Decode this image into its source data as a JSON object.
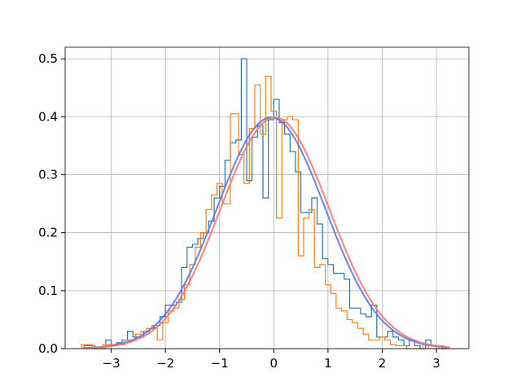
{
  "chart_data": {
    "type": "line",
    "title": "",
    "xlabel": "",
    "ylabel": "",
    "xlim": [
      -3.85,
      3.6
    ],
    "ylim": [
      0,
      0.52
    ],
    "grid": true,
    "x_ticks": [
      -3,
      -2,
      -1,
      0,
      1,
      2,
      3
    ],
    "x_tick_labels": [
      "−3",
      "−2",
      "−1",
      "0",
      "1",
      "2",
      "3"
    ],
    "y_ticks": [
      0.0,
      0.1,
      0.2,
      0.3,
      0.4,
      0.5
    ],
    "y_tick_labels": [
      "0.0",
      "0.1",
      "0.2",
      "0.3",
      "0.4",
      "0.5"
    ],
    "histograms": [
      {
        "color": "#1f77b4",
        "edges": [
          -3.5,
          -3.4,
          -3.3,
          -3.2,
          -3.1,
          -3.0,
          -2.9,
          -2.8,
          -2.7,
          -2.6,
          -2.5,
          -2.4,
          -2.3,
          -2.2,
          -2.1,
          -2.0,
          -1.9,
          -1.8,
          -1.7,
          -1.6,
          -1.5,
          -1.4,
          -1.3,
          -1.2,
          -1.1,
          -1.0,
          -0.9,
          -0.8,
          -0.7,
          -0.6,
          -0.5,
          -0.4,
          -0.3,
          -0.2,
          -0.1,
          0.0,
          0.1,
          0.2,
          0.3,
          0.4,
          0.5,
          0.6,
          0.7,
          0.8,
          0.9,
          1.0,
          1.1,
          1.2,
          1.3,
          1.4,
          1.5,
          1.6,
          1.7,
          1.8,
          1.9,
          2.0,
          2.1,
          2.2,
          2.3,
          2.4,
          2.5,
          2.6,
          2.7,
          2.8,
          2.9,
          3.0,
          3.1,
          3.2
        ],
        "heights": [
          0.005,
          0.005,
          0.0,
          0.0,
          0.015,
          0.005,
          0.01,
          0.015,
          0.03,
          0.02,
          0.02,
          0.03,
          0.035,
          0.04,
          0.055,
          0.075,
          0.075,
          0.08,
          0.14,
          0.175,
          0.18,
          0.19,
          0.2,
          0.22,
          0.26,
          0.28,
          0.325,
          0.355,
          0.36,
          0.5,
          0.29,
          0.365,
          0.385,
          0.26,
          0.395,
          0.43,
          0.39,
          0.37,
          0.34,
          0.305,
          0.235,
          0.235,
          0.26,
          0.215,
          0.155,
          0.145,
          0.13,
          0.13,
          0.12,
          0.07,
          0.07,
          0.06,
          0.055,
          0.075,
          0.02,
          0.02,
          0.03,
          0.02,
          0.015,
          0.005,
          0.015,
          0.005,
          0.0,
          0.015,
          0.005,
          0.005,
          0.0
        ]
      },
      {
        "color": "#ff7f0e",
        "edges": [
          -3.55,
          -3.35,
          -3.15,
          -2.95,
          -2.75,
          -2.55,
          -2.45,
          -2.35,
          -2.25,
          -2.15,
          -2.05,
          -1.95,
          -1.85,
          -1.75,
          -1.65,
          -1.55,
          -1.45,
          -1.35,
          -1.25,
          -1.15,
          -1.05,
          -0.95,
          -0.8,
          -0.65,
          -0.55,
          -0.45,
          -0.35,
          -0.25,
          -0.15,
          -0.05,
          0.05,
          0.15,
          0.25,
          0.35,
          0.45,
          0.55,
          0.65,
          0.75,
          0.85,
          0.95,
          1.05,
          1.15,
          1.25,
          1.35,
          1.45,
          1.55,
          1.65,
          1.75,
          1.85,
          1.95,
          2.05,
          2.15,
          2.25,
          2.35,
          2.45,
          2.55,
          2.65,
          2.75,
          2.85,
          2.95,
          3.05,
          3.15,
          3.25
        ],
        "heights": [
          0.007,
          0.0,
          0.007,
          0.007,
          0.015,
          0.025,
          0.03,
          0.035,
          0.04,
          0.015,
          0.045,
          0.065,
          0.07,
          0.085,
          0.11,
          0.145,
          0.175,
          0.2,
          0.24,
          0.265,
          0.285,
          0.25,
          0.405,
          0.335,
          0.285,
          0.38,
          0.455,
          0.37,
          0.47,
          0.41,
          0.225,
          0.395,
          0.4,
          0.395,
          0.16,
          0.225,
          0.24,
          0.14,
          0.145,
          0.11,
          0.095,
          0.07,
          0.065,
          0.05,
          0.045,
          0.035,
          0.025,
          0.015,
          0.015,
          0.02,
          0.015,
          0.007,
          0.005,
          0.005,
          0.0,
          0.0,
          0.0,
          0.007,
          0.0,
          0.0,
          0.005,
          0.0
        ]
      }
    ],
    "pdf_curves": [
      {
        "color": "#5577ee",
        "mean": -0.05,
        "std": 1.0,
        "x_range": [
          -3.5,
          3.2
        ]
      },
      {
        "color": "#ff7070",
        "mean": 0.02,
        "std": 1.0,
        "x_range": [
          -3.55,
          3.25
        ]
      }
    ]
  }
}
